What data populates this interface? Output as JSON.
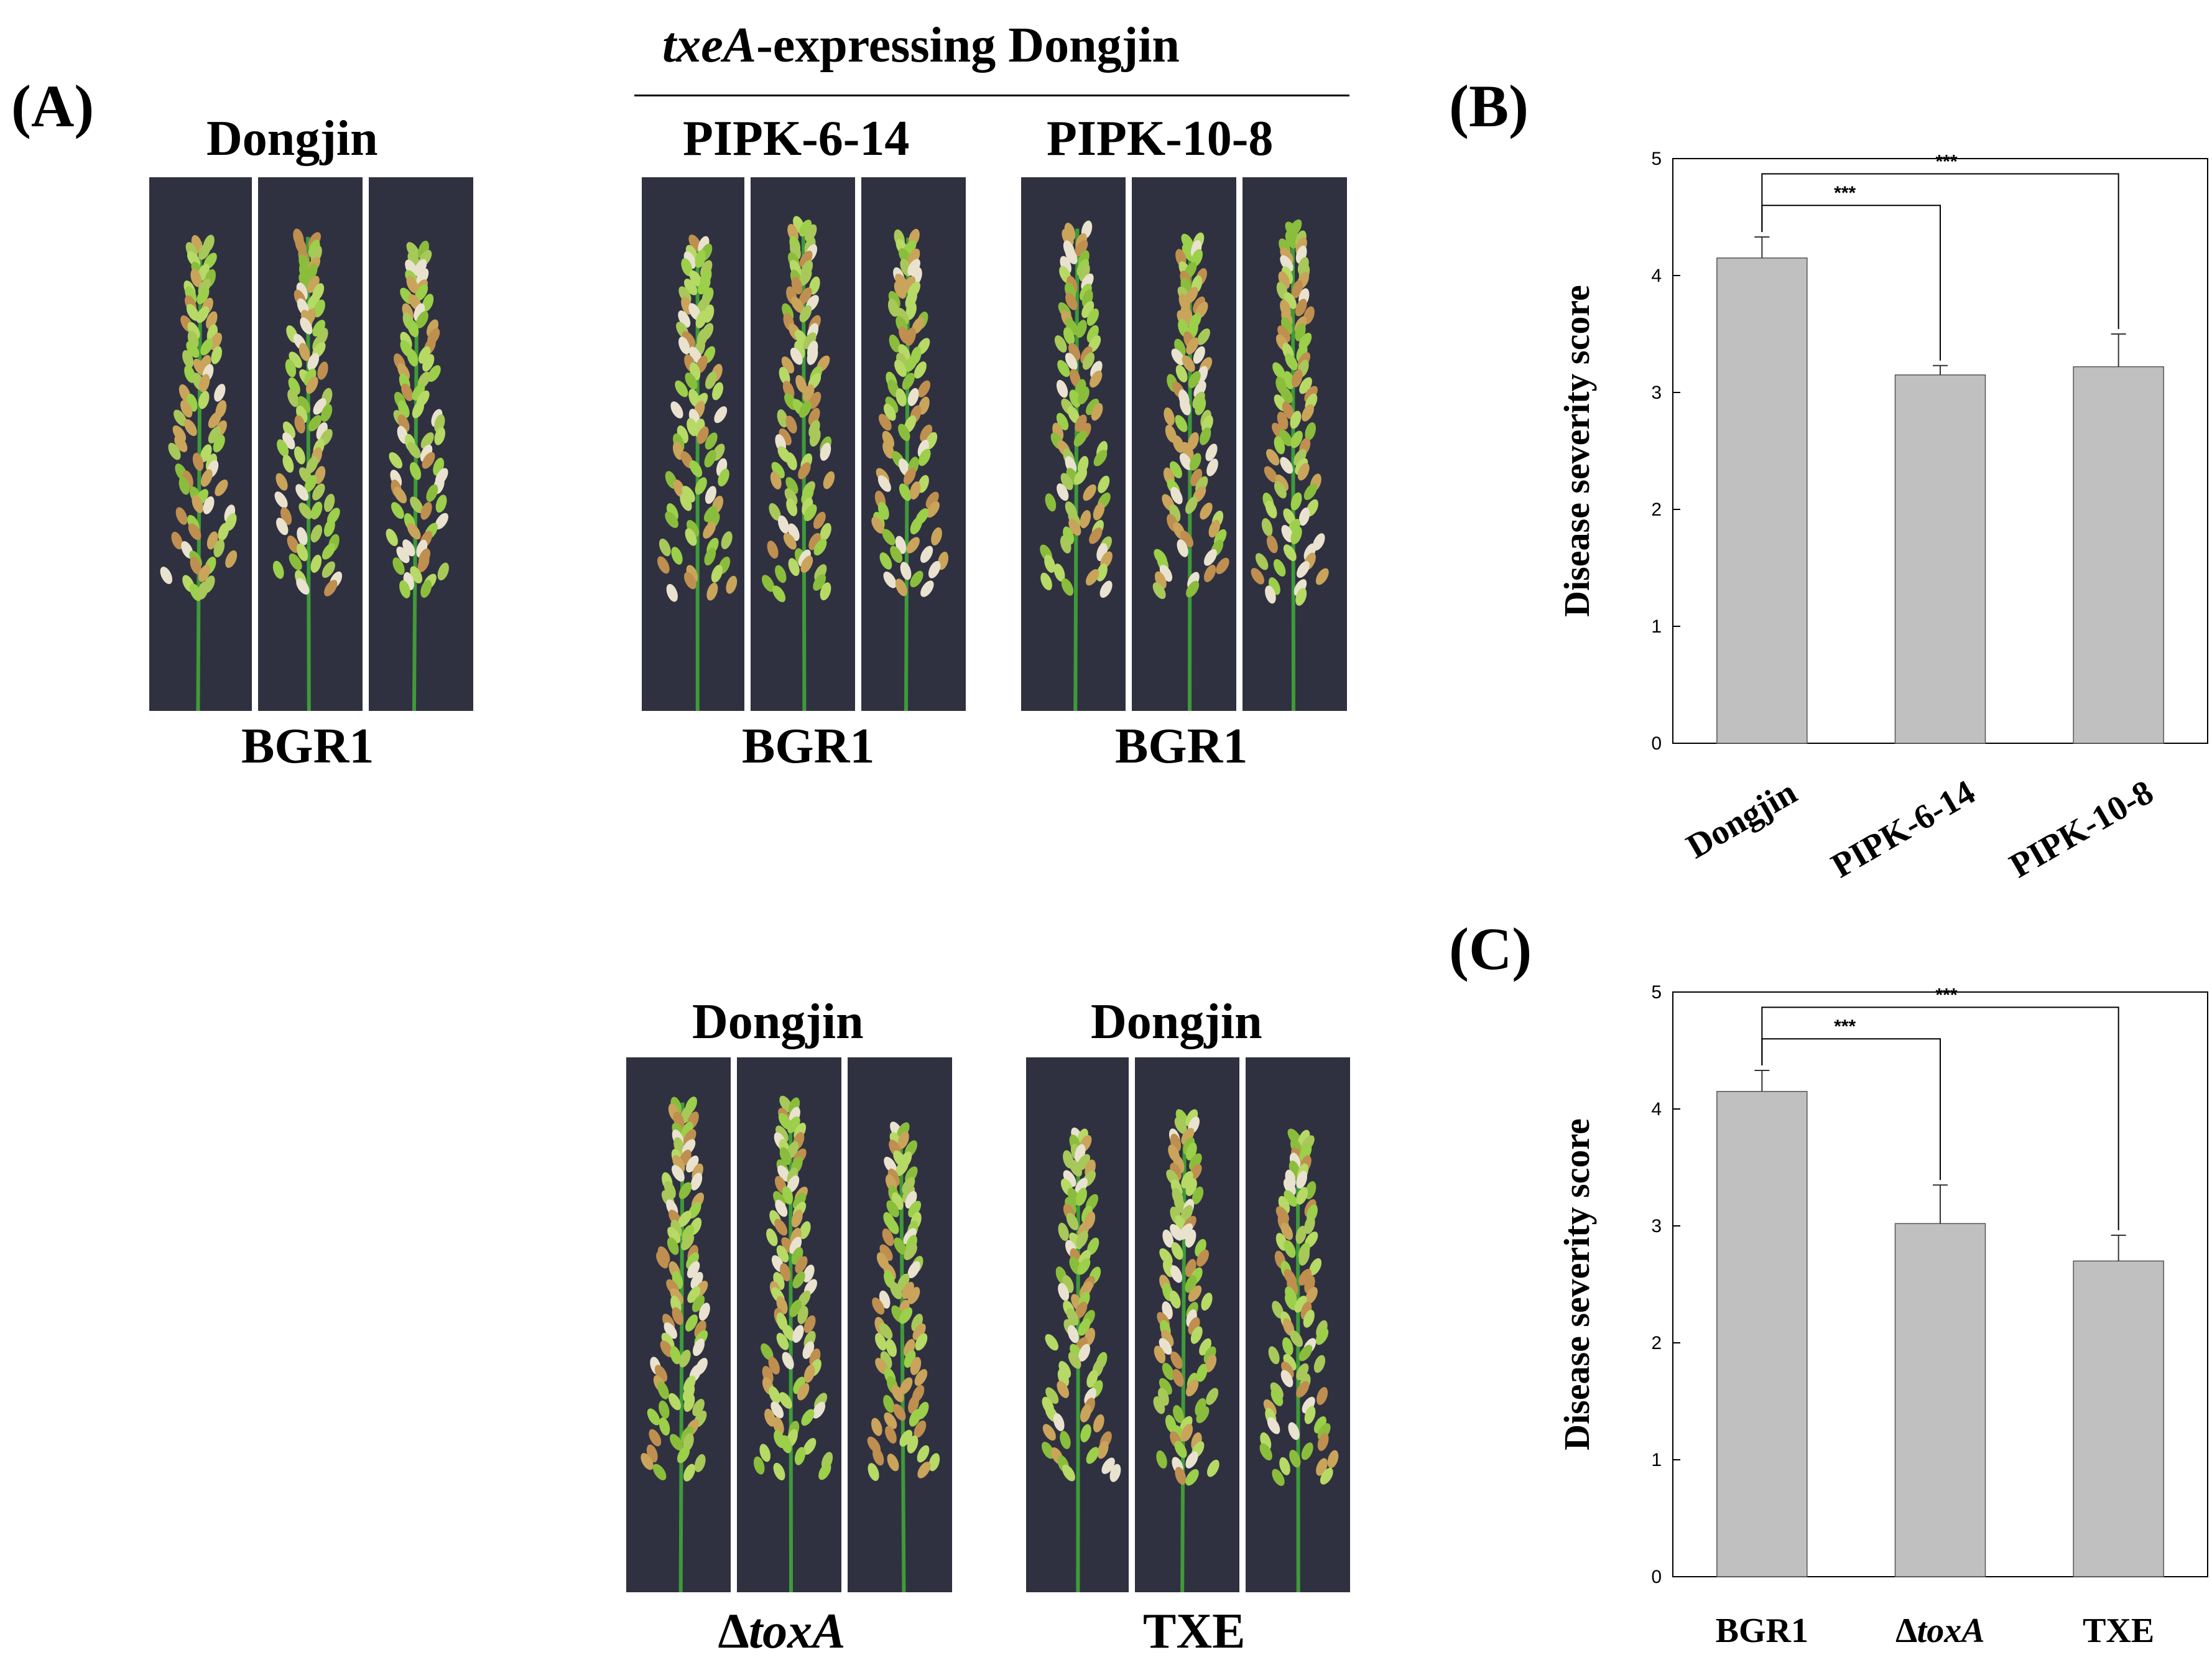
{
  "panel_labels": {
    "a": "(A)",
    "b": "(B)",
    "c": "(C)"
  },
  "panel_a": {
    "header_italic": "txeA",
    "header_rest": "-expressing Dongjin",
    "groups": [
      {
        "top": "Dongjin",
        "bottom": "BGR1",
        "bottom_italic": false
      },
      {
        "top": "PIPK-6-14",
        "bottom": "BGR1",
        "bottom_italic": false
      },
      {
        "top": "PIPK-10-8",
        "bottom": "BGR1",
        "bottom_italic": false
      },
      {
        "top": "Dongjin",
        "bottom": "∆toxA",
        "bottom_italic": true
      },
      {
        "top": "Dongjin",
        "bottom": "TXE",
        "bottom_italic": false
      }
    ]
  },
  "chart_data": [
    {
      "type": "bar",
      "panel": "(B)",
      "categories": [
        "Dongjin",
        "PIPK-6-14",
        "PIPK-10-8"
      ],
      "values": [
        4.15,
        3.15,
        3.22
      ],
      "errors": [
        0.18,
        0.08,
        0.28
      ],
      "ylabel": "Disease severity score",
      "xlabel": "",
      "ylim": [
        0,
        5
      ],
      "yticks": [
        "0",
        "1",
        "2",
        "3",
        "4",
        "5"
      ],
      "significance": [
        {
          "from": "Dongjin",
          "to": "PIPK-6-14",
          "label": "***"
        },
        {
          "from": "Dongjin",
          "to": "PIPK-10-8",
          "label": "***"
        }
      ],
      "bar_color": "#c0c0c0"
    },
    {
      "type": "bar",
      "panel": "(C)",
      "categories": [
        "BGR1",
        "∆toxA",
        "TXE"
      ],
      "values": [
        4.15,
        3.02,
        2.7
      ],
      "errors": [
        0.18,
        0.33,
        0.22
      ],
      "ylabel": "Disease severity score",
      "xlabel": "",
      "ylim": [
        0,
        5
      ],
      "yticks": [
        "0",
        "1",
        "2",
        "3",
        "4",
        "5"
      ],
      "significance": [
        {
          "from": "BGR1",
          "to": "∆toxA",
          "label": "***"
        },
        {
          "from": "BGR1",
          "to": "TXE",
          "label": "***"
        }
      ],
      "bar_color": "#c0c0c0"
    }
  ]
}
